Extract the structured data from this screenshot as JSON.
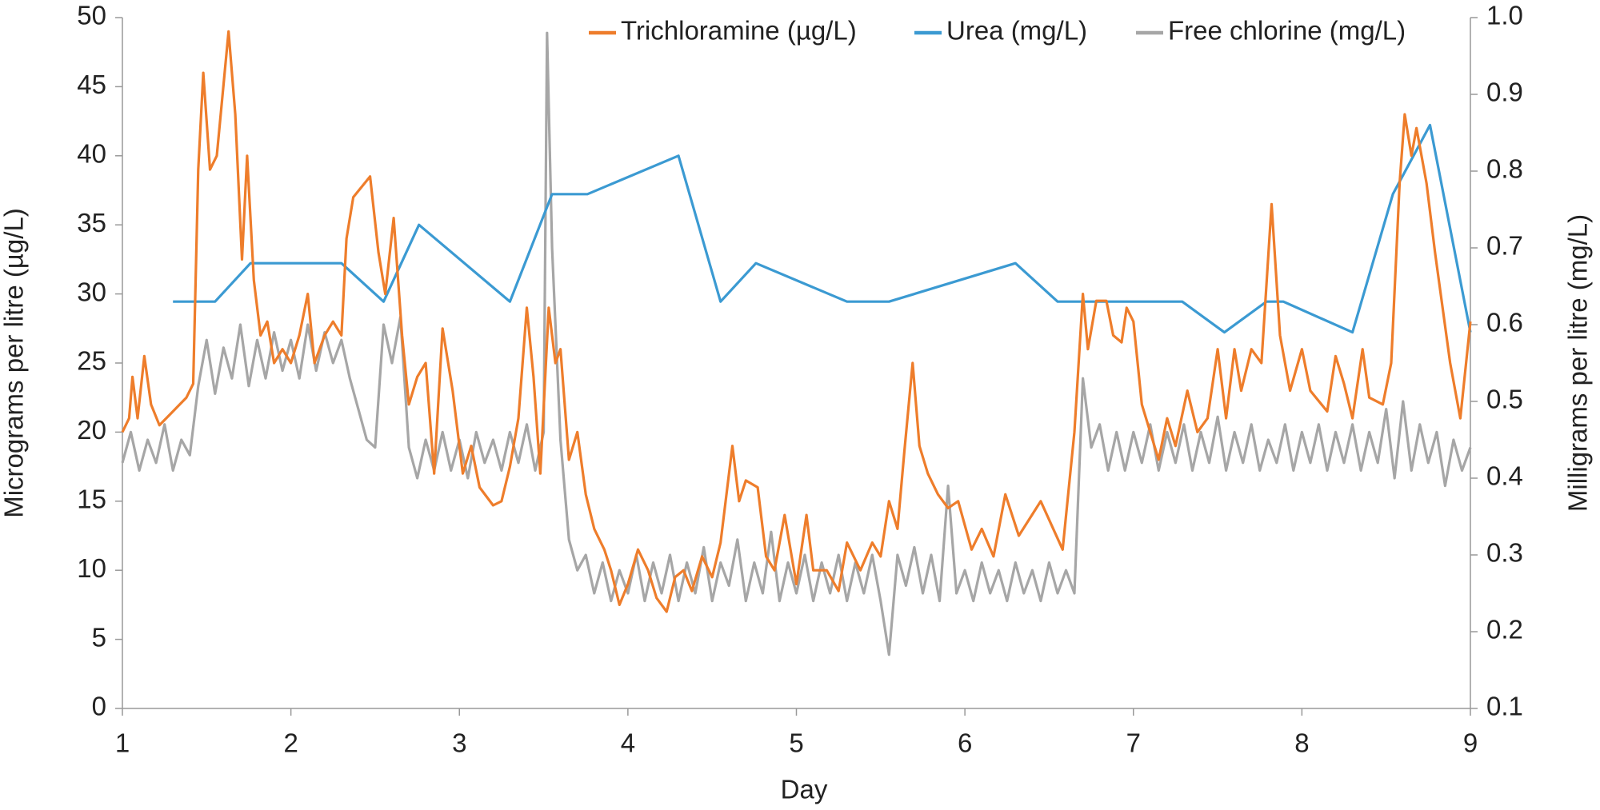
{
  "chart_data": {
    "type": "line",
    "xlabel": "Day",
    "ylabel": "Micrograms per litre  (µg/L)",
    "y2label": "Milligrams per litre (mg/L)",
    "xlim": [
      1,
      9
    ],
    "xticks": [
      1,
      2,
      3,
      4,
      5,
      6,
      7,
      8,
      9
    ],
    "ylim": [
      0,
      50
    ],
    "yticks": [
      0,
      5,
      10,
      15,
      20,
      25,
      30,
      35,
      40,
      45,
      50
    ],
    "y2lim": [
      0.1,
      1.0
    ],
    "y2ticks": [
      0.1,
      0.2,
      0.3,
      0.4,
      0.5,
      0.6,
      0.7,
      0.8,
      0.9,
      {
        "value": 1.0,
        "label": "1.0"
      }
    ],
    "legend": "top",
    "series": [
      {
        "name": "Trichloramine (µg/L)",
        "color": "#ee7d2b",
        "axis": "y",
        "x": [
          1.0,
          1.04,
          1.06,
          1.09,
          1.13,
          1.17,
          1.22,
          1.3,
          1.38,
          1.42,
          1.45,
          1.48,
          1.52,
          1.56,
          1.63,
          1.67,
          1.71,
          1.74,
          1.78,
          1.82,
          1.86,
          1.9,
          1.95,
          2.0,
          2.05,
          2.1,
          2.14,
          2.2,
          2.25,
          2.3,
          2.33,
          2.37,
          2.47,
          2.52,
          2.56,
          2.61,
          2.66,
          2.7,
          2.75,
          2.8,
          2.85,
          2.9,
          2.96,
          3.02,
          3.07,
          3.12,
          3.2,
          3.25,
          3.3,
          3.35,
          3.4,
          3.44,
          3.48,
          3.53,
          3.57,
          3.6,
          3.65,
          3.7,
          3.75,
          3.8,
          3.86,
          3.9,
          3.95,
          4.0,
          4.06,
          4.12,
          4.17,
          4.23,
          4.28,
          4.33,
          4.38,
          4.44,
          4.5,
          4.55,
          4.62,
          4.66,
          4.7,
          4.77,
          4.82,
          4.87,
          4.93,
          5.0,
          5.06,
          5.1,
          5.18,
          5.25,
          5.3,
          5.38,
          5.45,
          5.5,
          5.55,
          5.6,
          5.64,
          5.69,
          5.73,
          5.78,
          5.84,
          5.9,
          5.96,
          6.04,
          6.1,
          6.17,
          6.24,
          6.32,
          6.45,
          6.58,
          6.65,
          6.7,
          6.73,
          6.78,
          6.84,
          6.88,
          6.93,
          6.96,
          7.0,
          7.05,
          7.1,
          7.15,
          7.2,
          7.25,
          7.32,
          7.38,
          7.44,
          7.5,
          7.55,
          7.6,
          7.64,
          7.7,
          7.76,
          7.82,
          7.87,
          7.93,
          8.0,
          8.05,
          8.15,
          8.2,
          8.25,
          8.3,
          8.36,
          8.4,
          8.48,
          8.53,
          8.58,
          8.61,
          8.65,
          8.68,
          8.74,
          8.79,
          8.88,
          8.94,
          9.0
        ],
        "values": [
          20,
          21,
          24,
          21,
          25.5,
          22,
          20.5,
          21.5,
          22.5,
          23.5,
          39,
          46,
          39,
          40,
          49,
          43,
          32.5,
          40,
          31,
          27,
          28,
          25,
          26,
          25,
          27,
          30,
          25,
          27,
          28,
          27,
          34,
          37,
          38.5,
          33,
          30,
          35.5,
          27,
          22,
          24,
          25,
          17,
          27.5,
          23,
          17,
          19,
          16,
          14.7,
          15,
          17.5,
          21,
          29,
          24,
          17,
          29,
          25,
          26,
          18,
          20,
          15.5,
          13,
          11.5,
          10,
          7.5,
          9,
          11.5,
          10,
          8,
          7,
          9.5,
          10,
          8.5,
          11,
          9.5,
          12,
          19,
          15,
          16.5,
          16,
          11,
          10,
          14,
          9,
          14,
          10,
          10,
          8.5,
          12,
          10,
          12,
          11,
          15,
          13,
          18.5,
          25,
          19,
          17,
          15.5,
          14.5,
          15,
          11.5,
          13,
          11,
          15.5,
          12.5,
          15,
          11.5,
          20,
          30,
          26,
          29.5,
          29.5,
          27,
          26.5,
          29,
          28,
          22,
          20,
          18,
          21,
          19,
          23,
          20,
          21,
          26,
          21,
          26,
          23,
          26,
          25,
          36.5,
          27,
          23,
          26,
          23,
          21.5,
          25.5,
          23.5,
          21,
          26,
          22.5,
          22,
          25,
          38,
          43,
          40,
          42,
          38,
          33,
          25,
          21,
          28
        ]
      },
      {
        "name": "Urea (mg/L)",
        "color": "#3b9ad2",
        "axis": "y2",
        "x": [
          1.3,
          1.55,
          1.76,
          2.3,
          2.55,
          2.76,
          3.3,
          3.55,
          3.76,
          4.3,
          4.55,
          4.76,
          5.3,
          5.55,
          6.3,
          6.55,
          7.29,
          7.54,
          7.79,
          7.89,
          8.3,
          8.54,
          8.76,
          9.0
        ],
        "values": [
          0.63,
          0.63,
          0.68,
          0.68,
          0.63,
          0.73,
          0.63,
          0.77,
          0.77,
          0.82,
          0.63,
          0.68,
          0.63,
          0.63,
          0.68,
          0.63,
          0.63,
          0.59,
          0.63,
          0.63,
          0.59,
          0.77,
          0.86,
          0.59
        ]
      },
      {
        "name": "Free chlorine (mg/L)",
        "color": "#a6a6a6",
        "axis": "y2",
        "x": [
          1.0,
          1.05,
          1.1,
          1.15,
          1.2,
          1.25,
          1.3,
          1.35,
          1.4,
          1.45,
          1.5,
          1.55,
          1.6,
          1.65,
          1.7,
          1.75,
          1.8,
          1.85,
          1.9,
          1.95,
          2.0,
          2.05,
          2.1,
          2.15,
          2.2,
          2.25,
          2.3,
          2.35,
          2.4,
          2.45,
          2.5,
          2.55,
          2.6,
          2.65,
          2.7,
          2.75,
          2.8,
          2.85,
          2.9,
          2.95,
          3.0,
          3.05,
          3.1,
          3.15,
          3.2,
          3.25,
          3.3,
          3.35,
          3.4,
          3.45,
          3.5,
          3.52,
          3.55,
          3.6,
          3.65,
          3.7,
          3.75,
          3.8,
          3.85,
          3.9,
          3.95,
          4.0,
          4.05,
          4.1,
          4.15,
          4.2,
          4.25,
          4.3,
          4.35,
          4.4,
          4.45,
          4.5,
          4.55,
          4.6,
          4.65,
          4.7,
          4.75,
          4.8,
          4.85,
          4.9,
          4.95,
          5.0,
          5.05,
          5.1,
          5.15,
          5.2,
          5.25,
          5.3,
          5.35,
          5.4,
          5.45,
          5.5,
          5.55,
          5.6,
          5.65,
          5.7,
          5.75,
          5.8,
          5.85,
          5.9,
          5.95,
          6.0,
          6.05,
          6.1,
          6.15,
          6.2,
          6.25,
          6.3,
          6.35,
          6.4,
          6.45,
          6.5,
          6.55,
          6.6,
          6.65,
          6.7,
          6.75,
          6.8,
          6.85,
          6.9,
          6.95,
          7.0,
          7.05,
          7.1,
          7.15,
          7.2,
          7.25,
          7.3,
          7.35,
          7.4,
          7.45,
          7.5,
          7.55,
          7.6,
          7.65,
          7.7,
          7.75,
          7.8,
          7.85,
          7.9,
          7.95,
          8.0,
          8.05,
          8.1,
          8.15,
          8.2,
          8.25,
          8.3,
          8.35,
          8.4,
          8.45,
          8.5,
          8.55,
          8.6,
          8.65,
          8.7,
          8.75,
          8.8,
          8.85,
          8.9,
          8.95,
          9.0
        ],
        "values": [
          0.42,
          0.46,
          0.41,
          0.45,
          0.42,
          0.47,
          0.41,
          0.45,
          0.43,
          0.52,
          0.58,
          0.51,
          0.57,
          0.53,
          0.6,
          0.52,
          0.58,
          0.53,
          0.59,
          0.54,
          0.58,
          0.53,
          0.6,
          0.54,
          0.59,
          0.55,
          0.58,
          0.53,
          0.49,
          0.45,
          0.44,
          0.6,
          0.55,
          0.61,
          0.44,
          0.4,
          0.45,
          0.41,
          0.46,
          0.41,
          0.45,
          0.4,
          0.46,
          0.42,
          0.45,
          0.41,
          0.46,
          0.42,
          0.47,
          0.41,
          0.46,
          0.98,
          0.7,
          0.45,
          0.32,
          0.28,
          0.3,
          0.25,
          0.29,
          0.24,
          0.28,
          0.25,
          0.3,
          0.24,
          0.29,
          0.25,
          0.3,
          0.24,
          0.29,
          0.25,
          0.31,
          0.24,
          0.29,
          0.26,
          0.32,
          0.24,
          0.29,
          0.25,
          0.33,
          0.24,
          0.29,
          0.25,
          0.3,
          0.24,
          0.29,
          0.25,
          0.3,
          0.24,
          0.29,
          0.25,
          0.3,
          0.24,
          0.17,
          0.3,
          0.26,
          0.31,
          0.25,
          0.3,
          0.24,
          0.39,
          0.25,
          0.28,
          0.24,
          0.29,
          0.25,
          0.28,
          0.24,
          0.29,
          0.25,
          0.28,
          0.24,
          0.29,
          0.25,
          0.28,
          0.25,
          0.53,
          0.44,
          0.47,
          0.41,
          0.46,
          0.41,
          0.46,
          0.42,
          0.47,
          0.41,
          0.46,
          0.42,
          0.47,
          0.41,
          0.46,
          0.42,
          0.48,
          0.41,
          0.46,
          0.42,
          0.47,
          0.41,
          0.45,
          0.42,
          0.47,
          0.41,
          0.46,
          0.42,
          0.47,
          0.41,
          0.46,
          0.42,
          0.47,
          0.41,
          0.46,
          0.42,
          0.49,
          0.4,
          0.5,
          0.41,
          0.47,
          0.42,
          0.46,
          0.39,
          0.45,
          0.41,
          0.44
        ]
      }
    ]
  }
}
